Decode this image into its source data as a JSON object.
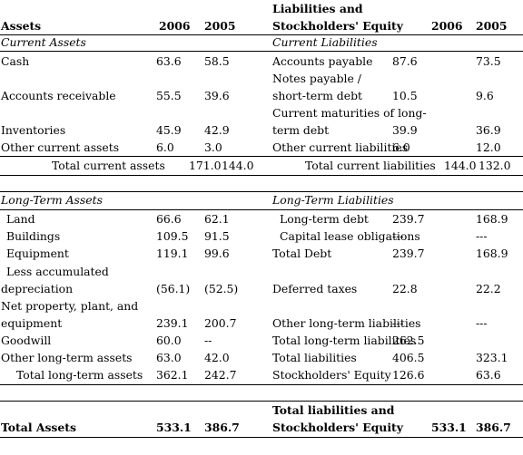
{
  "header": {
    "assets": "Assets",
    "liab_line1": "Liabilities and",
    "liab_line2": "Stockholders' Equity",
    "y2006": "2006",
    "y2005": "2005"
  },
  "current": {
    "assets_title": "Current  Assets",
    "liab_title": "Current  Liabilities",
    "rows": [
      {
        "al": [
          "Cash"
        ],
        "a06": "63.6",
        "a05": "58.5",
        "ll": [
          "Accounts payable"
        ],
        "l06": "87.6",
        "l05": "73.5"
      },
      {
        "al": [
          "Accounts receivable"
        ],
        "a06": "55.5",
        "a05": "39.6",
        "ll": [
          "Notes payable /",
          "short-term debt"
        ],
        "l06": "10.5",
        "l05": "9.6"
      },
      {
        "al": [
          "Inventories"
        ],
        "a06": "45.9",
        "a05": "42.9",
        "ll": [
          "Current maturities of long-",
          "term debt"
        ],
        "l06": "39.9",
        "l05": "36.9"
      },
      {
        "al": [
          "Other current assets"
        ],
        "a06": "6.0",
        "a05": "3.0",
        "ll": [
          "Other current liabilities"
        ],
        "l06": "6.0",
        "l05": "12.0"
      }
    ],
    "total_assets_label": "Total current assets",
    "total_assets_06": "171.0",
    "total_assets_05": "144.0",
    "total_liab_label": "Total current liabilities",
    "total_liab_06": "144.0",
    "total_liab_05": "132.0"
  },
  "longterm": {
    "assets_title": "Long-Term Assets",
    "liab_title": "Long-Term Liabilities",
    "rows": [
      {
        "al": [
          "Land"
        ],
        "a06": "66.6",
        "a05": "62.1",
        "ll": [
          "Long-term debt"
        ],
        "l06": "239.7",
        "l05": "168.9"
      },
      {
        "al": [
          "Buildings"
        ],
        "a06": "109.5",
        "a05": "91.5",
        "ll": [
          "Capital lease obligations"
        ],
        "l06": "---",
        "l05": "---"
      },
      {
        "al": [
          "Equipment"
        ],
        "a06": "119.1",
        "a05": "99.6",
        "ll": [
          "Total Debt"
        ],
        "l06": "239.7",
        "l05": "168.9"
      },
      {
        "al": [
          "Less accumulated",
          "depreciation"
        ],
        "a06": "(56.1)",
        "a05": "(52.5)",
        "ll": [
          "Deferred taxes"
        ],
        "l06": "22.8",
        "l05": "22.2"
      },
      {
        "al": [
          "Net property, plant, and",
          "equipment"
        ],
        "a06": "239.1",
        "a05": "200.7",
        "ll": [
          "Other long-term liabilities"
        ],
        "l06": "---",
        "l05": "---"
      },
      {
        "al": [
          "Goodwill"
        ],
        "a06": "60.0",
        "a05": "--",
        "ll": [
          "Total long-term liabilities"
        ],
        "l06": "262.5",
        "l05": ""
      },
      {
        "al": [
          "Other long-term assets"
        ],
        "a06": "63.0",
        "a05": "42.0",
        "ll": [
          "Total liabilities"
        ],
        "l06": "406.5",
        "l05": "323.1"
      },
      {
        "al": [
          "Total long-term assets"
        ],
        "a06": "362.1",
        "a05": "242.7",
        "ll": [
          "Stockholders' Equity"
        ],
        "l06": "126.6",
        "l05": "63.6"
      }
    ]
  },
  "totals": {
    "assets_label": "Total Assets",
    "assets_06": "533.1",
    "assets_05": "386.7",
    "liab_line1": "Total liabilities and",
    "liab_line2": "Stockholders' Equity",
    "liab_06": "533.1",
    "liab_05": "386.7"
  }
}
